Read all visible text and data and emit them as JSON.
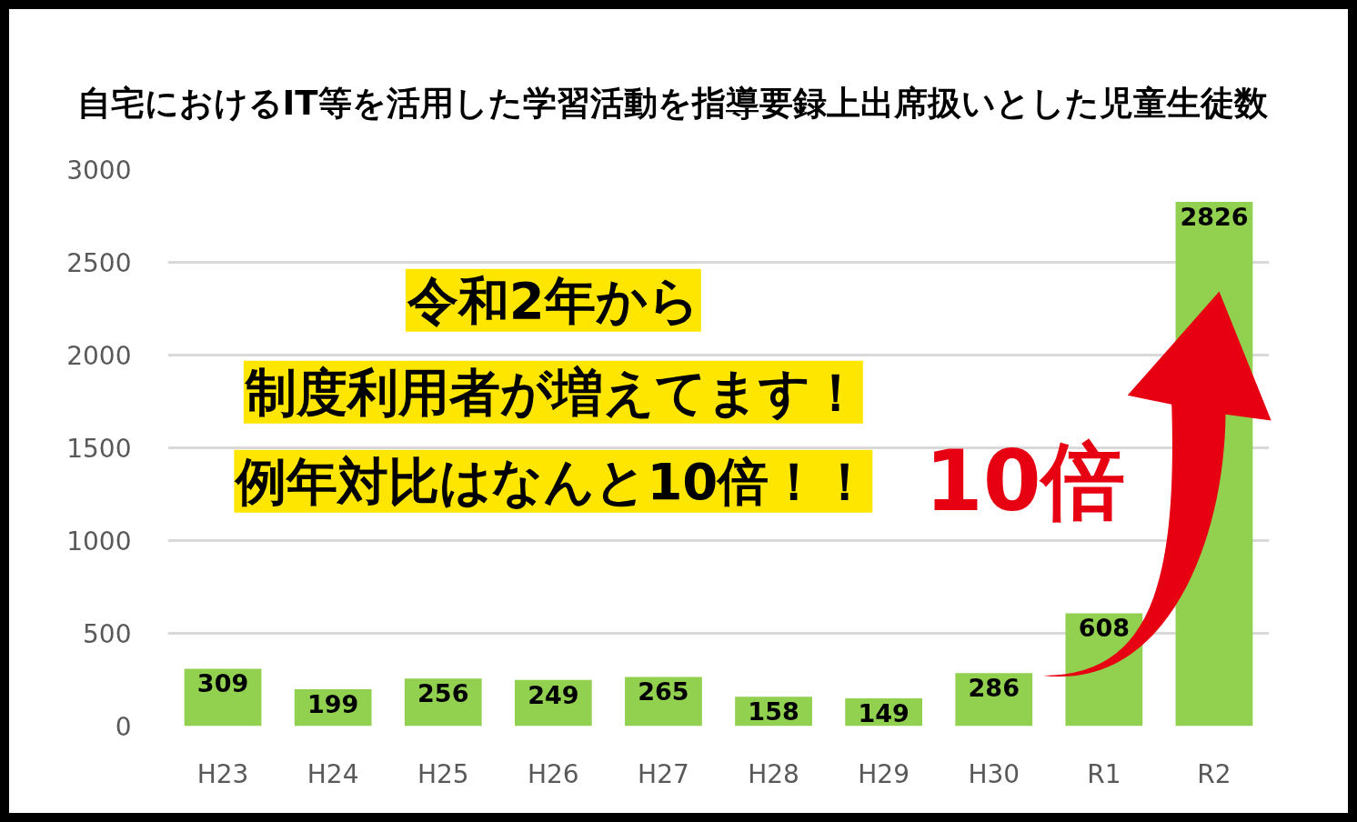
{
  "chart_data": {
    "type": "bar",
    "title": "自宅におけるIT等を活用した学習活動を指導要録上出席扱いとした児童生徒数",
    "categories": [
      "H23",
      "H24",
      "H25",
      "H26",
      "H27",
      "H28",
      "H29",
      "H30",
      "R1",
      "R2"
    ],
    "values": [
      309,
      199,
      256,
      249,
      265,
      158,
      149,
      286,
      608,
      2826
    ],
    "color": "#92d050",
    "ylim": [
      0,
      3000
    ],
    "yticks": [
      0,
      500,
      1000,
      1500,
      2000,
      2500,
      3000
    ],
    "grid": "y",
    "data_labels": true,
    "annotations": [
      "令和2年から",
      "制度利用者が増えてます！",
      "例年対比はなんと10倍！！",
      "10倍"
    ]
  }
}
